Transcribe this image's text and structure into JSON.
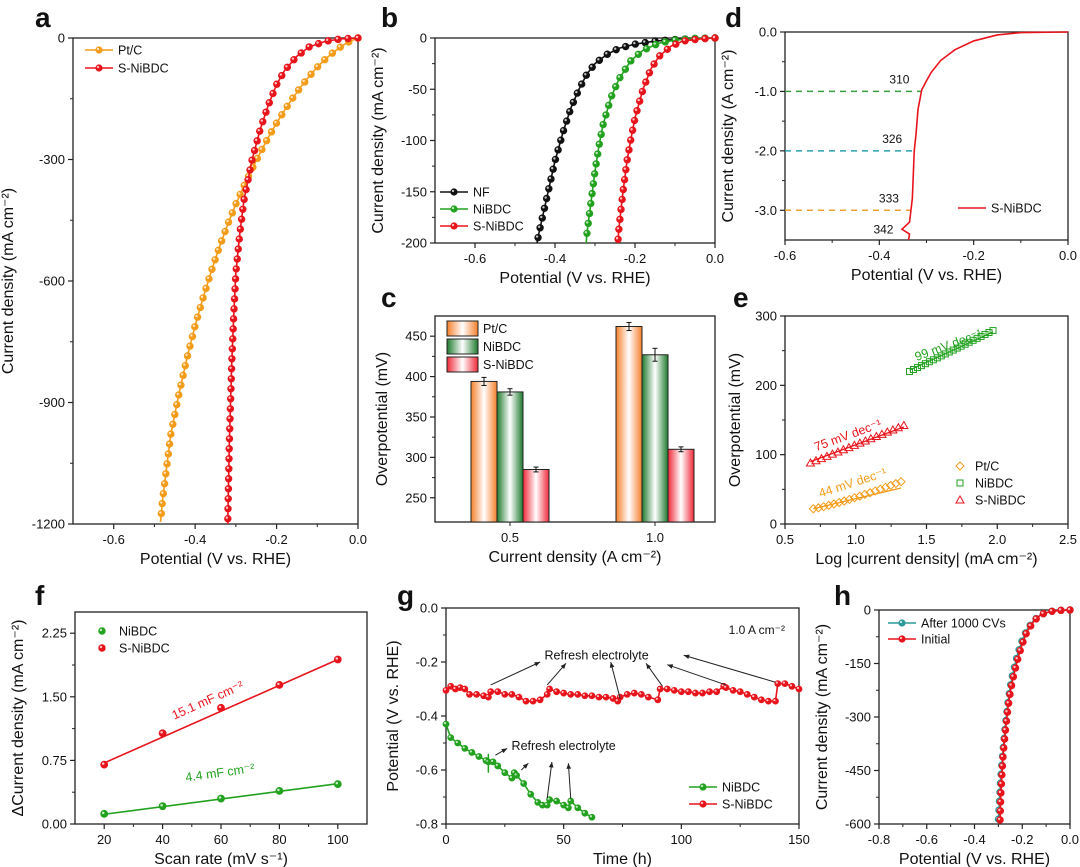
{
  "chart_data": [
    {
      "panel": "a",
      "type": "line",
      "xlabel": "Potential (V vs. RHE)",
      "ylabel": "Current density (mA cm⁻²)",
      "xlim": [
        -0.7,
        0.0
      ],
      "ylim": [
        -1200,
        0
      ],
      "xticks": [
        -0.6,
        -0.4,
        -0.2,
        0.0
      ],
      "xtick_labels": [
        "-0.6",
        "-0.4",
        "-0.2",
        "0.0"
      ],
      "yticks": [
        0,
        -300,
        -600,
        -900,
        -1200
      ],
      "ytick_labels": [
        "0",
        "-300",
        "-600",
        "-900",
        "-1200"
      ],
      "legend": "top-left",
      "series": [
        {
          "name": "Pt/C",
          "color": "#f39c1a",
          "marker": "circle",
          "x": [
            0.0,
            -0.02,
            -0.04,
            -0.06,
            -0.08,
            -0.1,
            -0.12,
            -0.14,
            -0.16,
            -0.18,
            -0.2,
            -0.22,
            -0.24,
            -0.26,
            -0.28,
            -0.3,
            -0.32,
            -0.34,
            -0.36,
            -0.38,
            -0.4,
            -0.42,
            -0.44,
            -0.46,
            -0.47,
            -0.48,
            -0.485
          ],
          "y": [
            0,
            -8,
            -20,
            -35,
            -52,
            -72,
            -95,
            -120,
            -148,
            -178,
            -210,
            -245,
            -283,
            -323,
            -365,
            -410,
            -460,
            -515,
            -575,
            -640,
            -710,
            -790,
            -880,
            -980,
            -1060,
            -1140,
            -1195
          ]
        },
        {
          "name": "S-NiBDC",
          "color": "#e8141c",
          "marker": "circle",
          "x": [
            0.0,
            -0.04,
            -0.08,
            -0.12,
            -0.15,
            -0.18,
            -0.2,
            -0.22,
            -0.24,
            -0.26,
            -0.28,
            -0.29,
            -0.3,
            -0.305,
            -0.31,
            -0.313,
            -0.316,
            -0.318,
            -0.32
          ],
          "y": [
            0,
            -2,
            -8,
            -22,
            -45,
            -80,
            -115,
            -165,
            -225,
            -300,
            -400,
            -480,
            -580,
            -680,
            -800,
            -900,
            -1000,
            -1100,
            -1200
          ]
        }
      ]
    },
    {
      "panel": "b",
      "type": "line",
      "xlabel": "Potential (V vs. RHE)",
      "ylabel": "Current density (mA cm⁻²)",
      "xlim": [
        -0.7,
        0.0
      ],
      "ylim": [
        -200,
        0
      ],
      "xticks": [
        -0.6,
        -0.4,
        -0.2,
        0.0
      ],
      "xtick_labels": [
        "-0.6",
        "-0.4",
        "-0.2",
        "0.0"
      ],
      "yticks": [
        0,
        -50,
        -100,
        -150,
        -200
      ],
      "ytick_labels": [
        "0",
        "-50",
        "-100",
        "-150",
        "-200"
      ],
      "legend": "bottom-left",
      "series": [
        {
          "name": "NF",
          "color": "#111111",
          "marker": "circle",
          "x": [
            0.0,
            -0.05,
            -0.1,
            -0.15,
            -0.2,
            -0.24,
            -0.27,
            -0.3,
            -0.32,
            -0.34,
            -0.36,
            -0.38,
            -0.4,
            -0.42,
            -0.44,
            -0.445
          ],
          "y": [
            0,
            -0.5,
            -1.5,
            -3,
            -6,
            -10,
            -16,
            -25,
            -35,
            -50,
            -68,
            -92,
            -120,
            -155,
            -190,
            -200
          ]
        },
        {
          "name": "NiBDC",
          "color": "#22a21f",
          "marker": "circle",
          "x": [
            0.0,
            -0.05,
            -0.1,
            -0.14,
            -0.18,
            -0.21,
            -0.24,
            -0.26,
            -0.28,
            -0.29,
            -0.3,
            -0.31,
            -0.32,
            -0.322
          ],
          "y": [
            0,
            -0.5,
            -2,
            -5,
            -12,
            -22,
            -40,
            -58,
            -85,
            -105,
            -130,
            -160,
            -190,
            -200
          ]
        },
        {
          "name": "S-NiBDC",
          "color": "#e8141c",
          "marker": "circle",
          "x": [
            0.0,
            -0.04,
            -0.08,
            -0.11,
            -0.14,
            -0.16,
            -0.18,
            -0.2,
            -0.21,
            -0.22,
            -0.23,
            -0.24,
            -0.243
          ],
          "y": [
            0,
            -1,
            -3,
            -8,
            -18,
            -30,
            -50,
            -78,
            -98,
            -120,
            -150,
            -185,
            -200
          ]
        }
      ]
    },
    {
      "panel": "c",
      "type": "bar",
      "xlabel": "Current density (A cm⁻²)",
      "ylabel": "Overpotential (mV)",
      "categories": [
        "0.5",
        "1.0"
      ],
      "ylim": [
        220,
        475
      ],
      "yticks": [
        250,
        300,
        350,
        400,
        450
      ],
      "ytick_labels": [
        "250",
        "300",
        "350",
        "400",
        "450"
      ],
      "legend": "top-left",
      "series": [
        {
          "name": "Pt/C",
          "color": "#f58c4a",
          "values": [
            394,
            462
          ],
          "errors": [
            5,
            5
          ]
        },
        {
          "name": "NiBDC",
          "color": "#2b8a3a",
          "values": [
            381,
            427
          ],
          "errors": [
            4,
            8
          ]
        },
        {
          "name": "S-NiBDC",
          "color": "#f0404a",
          "values": [
            285,
            310
          ],
          "errors": [
            3,
            3
          ]
        }
      ]
    },
    {
      "panel": "d",
      "type": "line",
      "xlabel": "Potential (V vs. RHE)",
      "ylabel": "Current density (A cm⁻²)",
      "xlim": [
        -0.6,
        0.0
      ],
      "ylim": [
        -3.5,
        0.0
      ],
      "xticks": [
        -0.6,
        -0.4,
        -0.2,
        0.0
      ],
      "xtick_labels": [
        "-0.6",
        "-0.4",
        "-0.2",
        "0.0"
      ],
      "yticks": [
        0.0,
        -1.0,
        -2.0,
        -3.0
      ],
      "ytick_labels": [
        "0.0",
        "-1.0",
        "-2.0",
        "-3.0"
      ],
      "legend": "bottom-right",
      "series": [
        {
          "name": "S-NiBDC",
          "color": "#e8141c",
          "marker": "none",
          "x": [
            0.0,
            -0.1,
            -0.15,
            -0.2,
            -0.24,
            -0.27,
            -0.29,
            -0.3,
            -0.31,
            -0.318,
            -0.322,
            -0.326,
            -0.328,
            -0.33,
            -0.333,
            -0.336,
            -0.352,
            -0.336,
            -0.338
          ],
          "y": [
            0.0,
            -0.01,
            -0.05,
            -0.15,
            -0.3,
            -0.48,
            -0.68,
            -0.82,
            -0.97,
            -1.3,
            -1.7,
            -2.0,
            -2.4,
            -2.8,
            -3.0,
            -3.2,
            -3.32,
            -3.4,
            -3.5
          ]
        }
      ],
      "reference_lines": [
        {
          "y": -1.0,
          "label": "310",
          "color": "#3aa040"
        },
        {
          "y": -2.0,
          "label": "326",
          "color": "#2aa0b0"
        },
        {
          "y": -3.0,
          "label": "333",
          "color": "#f0a030"
        }
      ],
      "annotations": [
        "342"
      ]
    },
    {
      "panel": "e",
      "type": "scatter",
      "xlabel": "Log |current density| (mA cm⁻²)",
      "ylabel": "Overpotential (mV)",
      "xlim": [
        0.5,
        2.5
      ],
      "ylim": [
        0,
        300
      ],
      "xticks": [
        0.5,
        1.0,
        1.5,
        2.0,
        2.5
      ],
      "xtick_labels": [
        "0.5",
        "1.0",
        "1.5",
        "2.0",
        "2.5"
      ],
      "yticks": [
        0,
        100,
        200,
        300
      ],
      "ytick_labels": [
        "0",
        "100",
        "200",
        "300"
      ],
      "legend": "bottom-right",
      "series": [
        {
          "name": "Pt/C",
          "color": "#f39c1a",
          "marker": "diamond",
          "x_range": [
            0.7,
            1.32
          ],
          "y_range": [
            22,
            61
          ],
          "fit_label": "44 mV dec⁻¹"
        },
        {
          "name": "NiBDC",
          "color": "#22a21f",
          "marker": "square",
          "x_range": [
            1.38,
            1.97
          ],
          "y_range": [
            220,
            279
          ],
          "fit_label": "99 mV dec⁻¹"
        },
        {
          "name": "S-NiBDC",
          "color": "#e8141c",
          "marker": "triangle",
          "x_range": [
            0.68,
            1.34
          ],
          "y_range": [
            88,
            142
          ],
          "fit_label": "75 mV dec⁻¹"
        }
      ]
    },
    {
      "panel": "f",
      "type": "scatter",
      "xlabel": "Scan rate (mV s⁻¹)",
      "ylabel": "ΔCurrent density (mA cm⁻²)",
      "xlim": [
        10,
        110
      ],
      "ylim": [
        0,
        2.5
      ],
      "xticks": [
        20,
        40,
        60,
        80,
        100
      ],
      "xtick_labels": [
        "20",
        "40",
        "60",
        "80",
        "100"
      ],
      "yticks": [
        0,
        0.75,
        1.5,
        2.25
      ],
      "ytick_labels": [
        "0.00",
        "0.75",
        "1.50",
        "2.25"
      ],
      "legend": "top-left",
      "series": [
        {
          "name": "NiBDC",
          "color": "#22a21f",
          "x": [
            20,
            40,
            60,
            80,
            100
          ],
          "y": [
            0.12,
            0.21,
            0.3,
            0.39,
            0.47
          ],
          "fit": [
            0.115,
            0.475
          ],
          "fit_label": "4.4 mF cm⁻²"
        },
        {
          "name": "S-NiBDC",
          "color": "#e8141c",
          "x": [
            20,
            40,
            60,
            80,
            100
          ],
          "y": [
            0.7,
            1.07,
            1.37,
            1.64,
            1.94
          ],
          "fit": [
            0.72,
            1.94
          ],
          "fit_label": "15.1 mF cm⁻²"
        }
      ]
    },
    {
      "panel": "g",
      "type": "line",
      "xlabel": "Time (h)",
      "ylabel": "Potential (V vs. RHE)",
      "xlim": [
        0,
        150
      ],
      "ylim": [
        -0.8,
        0.0
      ],
      "xticks": [
        0,
        50,
        100,
        150
      ],
      "xtick_labels": [
        "0",
        "50",
        "100",
        "150"
      ],
      "yticks": [
        0.0,
        -0.2,
        -0.4,
        -0.6,
        -0.8
      ],
      "ytick_labels": [
        "0.0",
        "-0.2",
        "-0.4",
        "-0.6",
        "-0.8"
      ],
      "legend": "bottom-right",
      "condition_label": "1.0 A cm⁻²",
      "annotations": [
        "Refresh electrolyte",
        "Refresh electrolyte"
      ],
      "series": [
        {
          "name": "NiBDC",
          "color": "#22a21f",
          "marker": "circle",
          "x": [
            0,
            2,
            5,
            8,
            11,
            14,
            17,
            18,
            20,
            22,
            25,
            28,
            29,
            30,
            33,
            36,
            39,
            41,
            43,
            44,
            47,
            50,
            52,
            53,
            56,
            59,
            62
          ],
          "y": [
            -0.43,
            -0.48,
            -0.5,
            -0.52,
            -0.535,
            -0.55,
            -0.565,
            -0.57,
            -0.57,
            -0.585,
            -0.61,
            -0.63,
            -0.61,
            -0.62,
            -0.65,
            -0.69,
            -0.72,
            -0.73,
            -0.73,
            -0.71,
            -0.715,
            -0.73,
            -0.74,
            -0.715,
            -0.74,
            -0.76,
            -0.775
          ]
        },
        {
          "name": "S-NiBDC",
          "color": "#e8141c",
          "marker": "circle",
          "x": [
            0,
            2,
            4,
            6,
            8,
            10,
            13,
            16,
            18,
            19,
            22,
            25,
            28,
            31,
            34,
            37,
            40,
            43,
            44,
            47,
            50,
            53,
            56,
            59,
            62,
            65,
            68,
            71,
            73,
            74,
            77,
            80,
            83,
            86,
            90,
            91,
            94,
            97,
            100,
            103,
            106,
            109,
            112,
            115,
            118,
            119,
            122,
            125,
            128,
            131,
            134,
            137,
            140,
            141,
            144,
            147,
            150
          ],
          "y": [
            -0.305,
            -0.29,
            -0.3,
            -0.295,
            -0.3,
            -0.32,
            -0.32,
            -0.325,
            -0.33,
            -0.31,
            -0.31,
            -0.32,
            -0.32,
            -0.33,
            -0.345,
            -0.345,
            -0.34,
            -0.32,
            -0.3,
            -0.31,
            -0.315,
            -0.32,
            -0.32,
            -0.325,
            -0.325,
            -0.33,
            -0.33,
            -0.335,
            -0.345,
            -0.33,
            -0.32,
            -0.315,
            -0.32,
            -0.33,
            -0.34,
            -0.3,
            -0.3,
            -0.305,
            -0.31,
            -0.31,
            -0.315,
            -0.315,
            -0.31,
            -0.31,
            -0.29,
            -0.295,
            -0.305,
            -0.31,
            -0.32,
            -0.33,
            -0.34,
            -0.345,
            -0.345,
            -0.28,
            -0.28,
            -0.29,
            -0.3
          ]
        }
      ]
    },
    {
      "panel": "h",
      "type": "line",
      "xlabel": "Potential (V vs. RHE)",
      "ylabel": "Current density (mA cm⁻²)",
      "xlim": [
        -0.8,
        0.0
      ],
      "ylim": [
        -600,
        0
      ],
      "xticks": [
        -0.8,
        -0.6,
        -0.4,
        -0.2,
        0.0
      ],
      "xtick_labels": [
        "-0.8",
        "-0.6",
        "-0.4",
        "-0.2",
        "0.0"
      ],
      "yticks": [
        0,
        -150,
        -300,
        -450,
        -600
      ],
      "ytick_labels": [
        "0",
        "-150",
        "-300",
        "-450",
        "-600"
      ],
      "legend": "top-left",
      "series": [
        {
          "name": "After 1000 CVs",
          "color": "#2a9a9a",
          "marker": "circle",
          "x": [
            0.0,
            -0.04,
            -0.08,
            -0.12,
            -0.15,
            -0.18,
            -0.2,
            -0.22,
            -0.24,
            -0.25,
            -0.26,
            -0.27,
            -0.28,
            -0.29,
            -0.295,
            -0.3
          ],
          "y": [
            0,
            -1,
            -4,
            -12,
            -28,
            -55,
            -85,
            -125,
            -180,
            -215,
            -260,
            -320,
            -390,
            -470,
            -530,
            -590
          ]
        },
        {
          "name": "Initial",
          "color": "#e8141c",
          "marker": "circle",
          "x": [
            0.0,
            -0.04,
            -0.08,
            -0.12,
            -0.15,
            -0.18,
            -0.2,
            -0.22,
            -0.24,
            -0.25,
            -0.26,
            -0.27,
            -0.28,
            -0.285,
            -0.29,
            -0.293
          ],
          "y": [
            0,
            -1,
            -4,
            -12,
            -30,
            -60,
            -95,
            -140,
            -195,
            -230,
            -275,
            -335,
            -405,
            -460,
            -520,
            -590
          ]
        }
      ]
    }
  ]
}
